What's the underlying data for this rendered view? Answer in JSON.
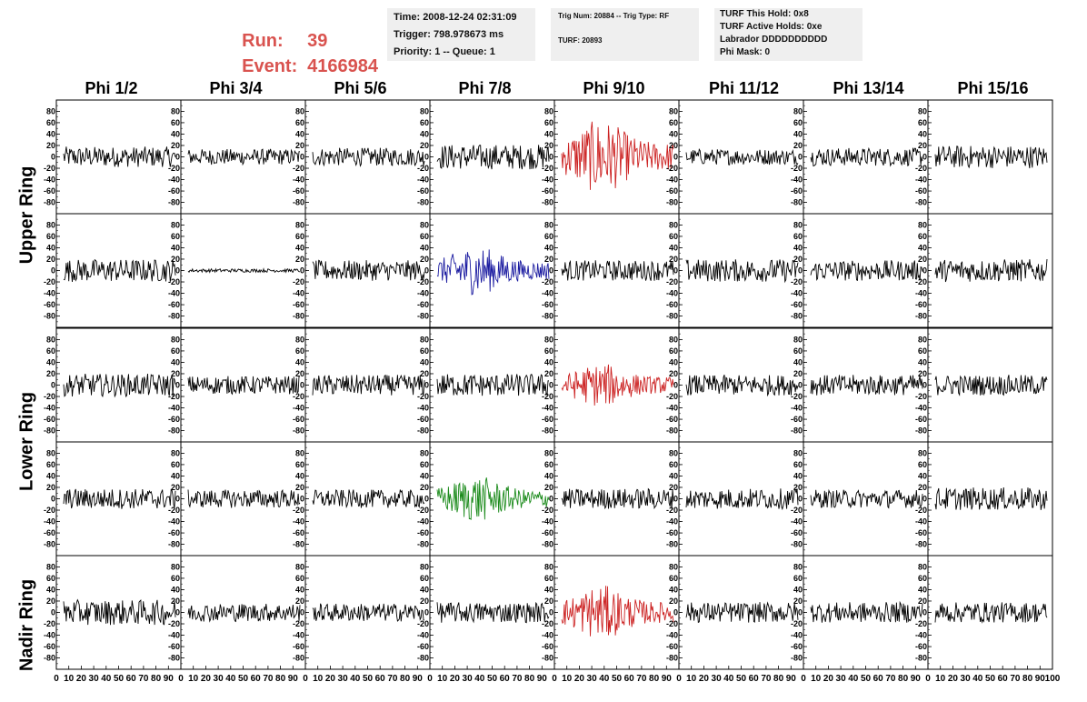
{
  "run_info": {
    "run_label": "Run:",
    "run_value": "39",
    "event_label": "Event:",
    "event_value": "4166984",
    "accent_color": "#d9534f"
  },
  "time_box": {
    "time": "Time: 2008-12-24 02:31:09",
    "trigger": "Trigger: 798.978673 ms",
    "priority": "Priority: 1 -- Queue: 1"
  },
  "trig_box": {
    "trig": "Trig Num: 20884 -- Trig Type: RF",
    "turf": "TURF: 20893"
  },
  "turf_box": {
    "this_hold": "TURF This Hold: 0x8",
    "active_holds": "TURF Active Holds: 0xe",
    "labrador": "Labrador DDDDDDDDDD",
    "phi_mask": "Phi Mask: 0"
  },
  "phi_headers": [
    "Phi 1/2",
    "Phi 3/4",
    "Phi 5/6",
    "Phi 7/8",
    "Phi 9/10",
    "Phi 11/12",
    "Phi 13/14",
    "Phi 15/16"
  ],
  "ring_labels": {
    "upper": "Upper Ring",
    "lower": "Lower Ring",
    "nadir": "Nadir Ring"
  },
  "chart_data": {
    "type": "line",
    "description_grid": "5 rows x 8 columns of waveform panels",
    "ylim": [
      -95,
      95
    ],
    "xlim": [
      0,
      100
    ],
    "y_ticks": [
      -80,
      -60,
      -40,
      -20,
      0,
      20,
      40,
      60,
      80
    ],
    "x_tick_labels": [
      "0",
      "10",
      "20",
      "30",
      "40",
      "50",
      "60",
      "70",
      "80",
      "90",
      "100"
    ],
    "colors": {
      "default": "#000000",
      "red": "#cc2222",
      "blue": "#1a1aa0",
      "green": "#1a8a1a"
    },
    "highlighted_panels": [
      {
        "row": 0,
        "col": 4,
        "color": "red"
      },
      {
        "row": 1,
        "col": 3,
        "color": "blue"
      },
      {
        "row": 2,
        "col": 4,
        "color": "red"
      },
      {
        "row": 3,
        "col": 3,
        "color": "green"
      },
      {
        "row": 4,
        "col": 4,
        "color": "red"
      }
    ],
    "panel_amplitudes": [
      [
        18,
        14,
        16,
        22,
        55,
        14,
        16,
        20
      ],
      [
        20,
        3,
        18,
        36,
        18,
        20,
        18,
        20
      ],
      [
        20,
        16,
        18,
        20,
        32,
        18,
        18,
        18
      ],
      [
        18,
        16,
        16,
        34,
        18,
        18,
        16,
        20
      ],
      [
        22,
        16,
        16,
        18,
        40,
        18,
        18,
        18
      ]
    ],
    "grid": false
  }
}
